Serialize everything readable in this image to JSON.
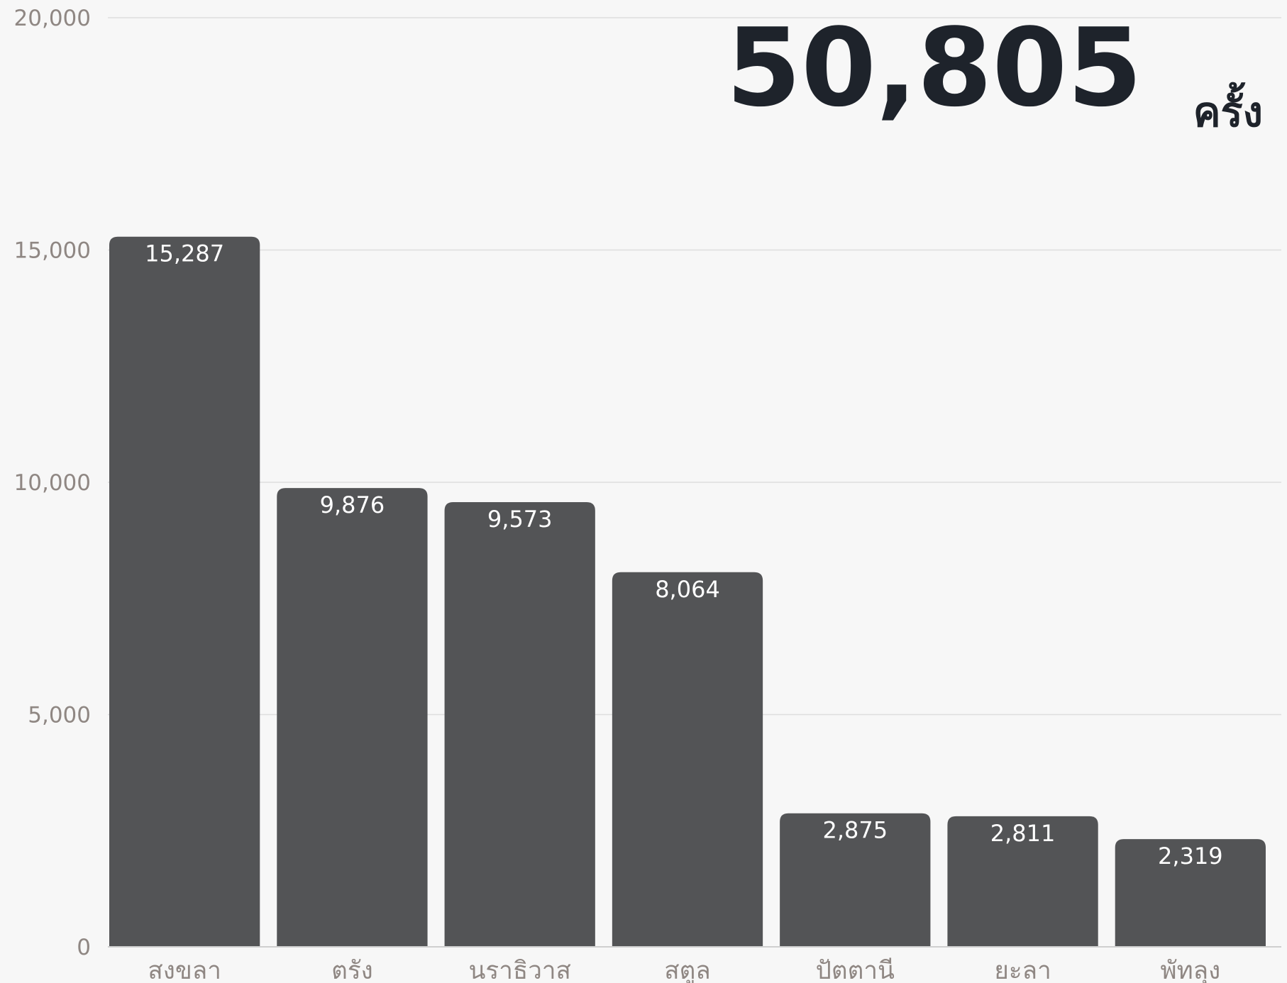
{
  "headline": {
    "total": "50,805",
    "unit": "ครั้ง"
  },
  "colors": {
    "bar": "#535456",
    "grid": "#dedede",
    "tick_text": "#8f8783",
    "headline_text": "#1e232b",
    "background": "#f7f7f7"
  },
  "chart_data": {
    "type": "bar",
    "categories": [
      "สงขลา",
      "ตรัง",
      "นราธิวาส",
      "สตูล",
      "ปัตตานี",
      "ยะลา",
      "พัทลุง"
    ],
    "values": [
      15287,
      9876,
      9573,
      8064,
      2875,
      2811,
      2319
    ],
    "value_labels": [
      "15,287",
      "9,876",
      "9,573",
      "8,064",
      "2,875",
      "2,811",
      "2,319"
    ],
    "ylim": [
      0,
      20000
    ],
    "yticks": [
      0,
      5000,
      10000,
      15000,
      20000
    ],
    "ytick_labels": [
      "0",
      "5,000",
      "10,000",
      "15,000",
      "20,000"
    ],
    "grid": true,
    "legend": "none"
  }
}
